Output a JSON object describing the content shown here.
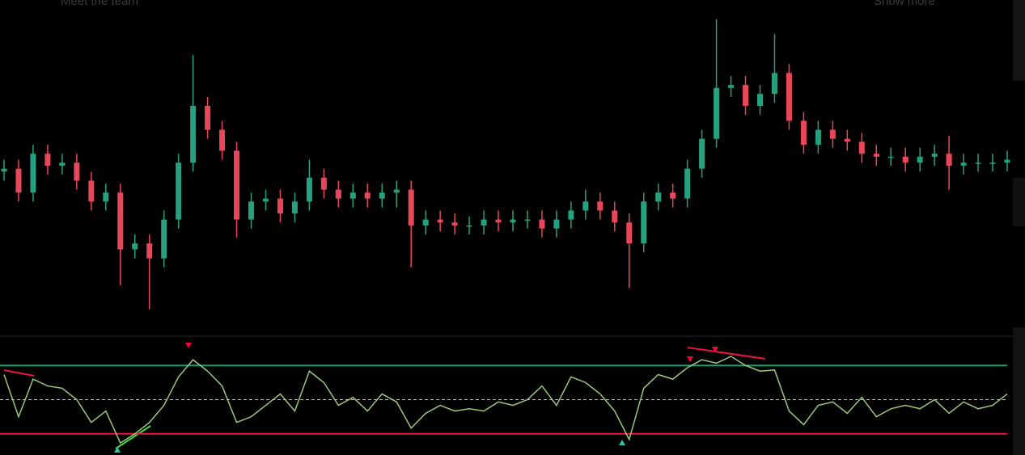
{
  "page_texts": {
    "top_left": "Meet the team",
    "top_right": "Show more"
  },
  "chart_data": [
    {
      "type": "candlestick",
      "ylim": [
        0,
        100
      ],
      "up_color": "#26a17f",
      "down_color": "#e8475a",
      "open": [
        48,
        49,
        41,
        54,
        50,
        51,
        45,
        38,
        41,
        22,
        24,
        19,
        32,
        51,
        70,
        62,
        55,
        32,
        38,
        39,
        34,
        38,
        46,
        42,
        39,
        41,
        39,
        41,
        42,
        30,
        32,
        31,
        30,
        30,
        32,
        31,
        32,
        32,
        29,
        32,
        35,
        38,
        35,
        31,
        24,
        38,
        41,
        39,
        49,
        59,
        76,
        77,
        70,
        74,
        81,
        65,
        57,
        62,
        59,
        58,
        54,
        53,
        53,
        51,
        53,
        54,
        50,
        51,
        51,
        51
      ],
      "high": [
        52,
        52,
        57,
        57,
        54,
        54,
        48,
        44,
        44,
        27,
        27,
        35,
        54,
        87,
        73,
        65,
        58,
        41,
        42,
        42,
        41,
        52,
        49,
        45,
        44,
        44,
        44,
        45,
        45,
        35,
        35,
        34,
        33,
        35,
        35,
        35,
        35,
        35,
        35,
        38,
        42,
        41,
        38,
        34,
        41,
        44,
        44,
        52,
        62,
        99,
        80,
        80,
        77,
        94,
        84,
        68,
        65,
        65,
        62,
        61,
        57,
        56,
        56,
        56,
        57,
        60,
        54,
        54,
        54,
        55
      ],
      "low": [
        45,
        38,
        38,
        47,
        47,
        42,
        35,
        35,
        10,
        19,
        2,
        16,
        29,
        48,
        59,
        52,
        26,
        29,
        35,
        31,
        31,
        35,
        39,
        36,
        36,
        36,
        36,
        36,
        16,
        27,
        28,
        27,
        27,
        27,
        28,
        28,
        29,
        26,
        26,
        29,
        32,
        32,
        28,
        9,
        21,
        35,
        36,
        36,
        46,
        56,
        73,
        67,
        67,
        71,
        62,
        54,
        54,
        56,
        55,
        51,
        50,
        50,
        48,
        48,
        50,
        42,
        47,
        48,
        48,
        48
      ],
      "close": [
        49,
        41,
        54,
        50,
        51,
        45,
        38,
        41,
        22,
        24,
        19,
        32,
        51,
        70,
        62,
        55,
        32,
        38,
        39,
        34,
        38,
        46,
        42,
        39,
        41,
        39,
        41,
        42,
        30,
        32,
        31,
        30,
        30,
        32,
        31,
        32,
        32,
        29,
        32,
        35,
        38,
        35,
        31,
        24,
        38,
        41,
        39,
        49,
        59,
        76,
        77,
        70,
        74,
        81,
        65,
        57,
        62,
        59,
        58,
        54,
        53,
        53,
        51,
        53,
        54,
        50,
        51,
        51,
        51,
        52
      ]
    },
    {
      "type": "line",
      "ylim": [
        0,
        100
      ],
      "color": "#9cc97a",
      "values": [
        72,
        35,
        68,
        62,
        60,
        50,
        30,
        40,
        12,
        20,
        30,
        45,
        70,
        85,
        75,
        62,
        30,
        35,
        45,
        55,
        40,
        75,
        65,
        45,
        52,
        40,
        55,
        48,
        25,
        38,
        45,
        40,
        42,
        40,
        48,
        45,
        50,
        62,
        45,
        70,
        65,
        55,
        40,
        15,
        60,
        72,
        68,
        78,
        85,
        82,
        88,
        80,
        75,
        76,
        40,
        28,
        45,
        48,
        38,
        52,
        35,
        42,
        45,
        42,
        50,
        38,
        48,
        42,
        45,
        55
      ],
      "hlines": [
        {
          "value": 80,
          "color": "#1f9e6e"
        },
        {
          "value": 50,
          "color": "#bbbbbb",
          "dashed": true
        },
        {
          "value": 20,
          "color": "#e8173f"
        }
      ]
    }
  ]
}
